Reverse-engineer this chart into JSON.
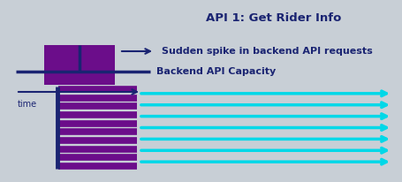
{
  "bg_color": "#c8cfd6",
  "title": "API 1: Get Rider Info",
  "title_color": "#1a2472",
  "title_fontsize": 9.5,
  "title_fontweight": "bold",
  "vert_bar_color": "#1a2472",
  "purple_line_color": "#6b0d8a",
  "cyan_line_color": "#00d8e8",
  "navy_color": "#1a2472",
  "spike_bar_color": "#6b0d8a",
  "label_backend": "Backend API Capacity",
  "label_spike": "Sudden spike in backend API requests",
  "label_time": "time",
  "label_fontsize": 8,
  "label_fontweight": "bold",
  "num_purple_lines": 10,
  "num_cyan_lines": 7,
  "fig_width": 4.56,
  "fig_height": 2.06,
  "fig_dpi": 100
}
